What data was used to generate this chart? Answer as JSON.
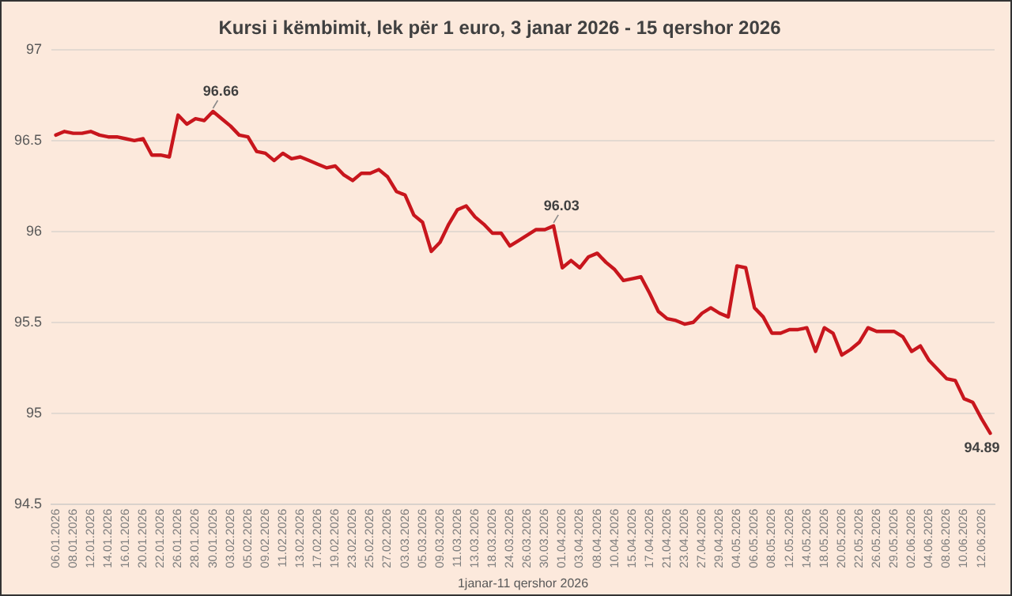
{
  "chart_data": {
    "type": "line",
    "title": "Kursi i këmbimit, lek për 1 euro, 3 janar 2026 - 15 qershor 2026",
    "xlabel": "1janar-11 qershor 2026",
    "categories": [
      "06.01.2026",
      null,
      "08.01.2026",
      null,
      "12.01.2026",
      null,
      "14.01.2026",
      null,
      "16.01.2026",
      null,
      "20.01.2026",
      null,
      "22.01.2026",
      null,
      "26.01.2026",
      null,
      "28.01.2026",
      null,
      "30.01.2026",
      null,
      "03.02.2026",
      null,
      "05.02.2026",
      null,
      "09.02.2026",
      null,
      "11.02.2026",
      null,
      "13.02.2026",
      null,
      "17.02.2026",
      null,
      "19.02.2026",
      null,
      "23.02.2026",
      null,
      "25.02.2026",
      null,
      "27.02.2026",
      null,
      "03.03.2026",
      null,
      "05.03.2026",
      null,
      "09.03.2026",
      null,
      "11.03.2026",
      null,
      "13.03.2026",
      null,
      "18.03.2026",
      null,
      "24.03.2026",
      null,
      "26.03.2026",
      null,
      "30.03.2026",
      null,
      "01.04.2026",
      null,
      "03.04.2026",
      null,
      "08.04.2026",
      null,
      "10.04.2026",
      null,
      "15.04.2026",
      null,
      "17.04.2026",
      null,
      "21.04.2026",
      null,
      "23.04.2026",
      null,
      "27.04.2026",
      null,
      "29.04.2026",
      null,
      "04.05.2026",
      null,
      "06.05.2026",
      null,
      "08.05.2026",
      null,
      "12.05.2026",
      null,
      "14.05.2026",
      null,
      "18.05.2026",
      null,
      "20.05.2026",
      null,
      "22.05.2026",
      null,
      "26.05.2026",
      null,
      "29.05.2026",
      null,
      "02.06.2026",
      null,
      "04.06.2026",
      null,
      "08.06.2026",
      null,
      "10.06.2026",
      null,
      "12.06.2026",
      null
    ],
    "series": [
      {
        "color": "#c8161d",
        "values": [
          96.53,
          96.55,
          96.54,
          96.54,
          96.55,
          96.53,
          96.52,
          96.52,
          96.51,
          96.5,
          96.51,
          96.42,
          96.42,
          96.41,
          96.64,
          96.59,
          96.62,
          96.61,
          96.66,
          96.62,
          96.58,
          96.53,
          96.52,
          96.44,
          96.43,
          96.39,
          96.43,
          96.4,
          96.41,
          96.39,
          96.37,
          96.35,
          96.36,
          96.31,
          96.28,
          96.32,
          96.32,
          96.34,
          96.3,
          96.22,
          96.2,
          96.09,
          96.05,
          95.89,
          95.94,
          96.04,
          96.12,
          96.14,
          96.08,
          96.04,
          95.99,
          95.99,
          95.92,
          95.95,
          95.98,
          96.01,
          96.01,
          96.03,
          95.8,
          95.84,
          95.8,
          95.86,
          95.88,
          95.83,
          95.79,
          95.73,
          95.74,
          95.75,
          95.66,
          95.56,
          95.52,
          95.51,
          95.49,
          95.5,
          95.55,
          95.58,
          95.55,
          95.53,
          95.81,
          95.8,
          95.58,
          95.53,
          95.44,
          95.44,
          95.46,
          95.46,
          95.47,
          95.34,
          95.47,
          95.44,
          95.32,
          95.35,
          95.39,
          95.47,
          95.45,
          95.45,
          95.45,
          95.42,
          95.34,
          95.37,
          95.29,
          95.24,
          95.19,
          95.18,
          95.08,
          95.06,
          94.97,
          94.89
        ],
        "value_labels": [
          null,
          null,
          null,
          null,
          null,
          null,
          null,
          null,
          null,
          null,
          null,
          null,
          null,
          null,
          null,
          null,
          null,
          null,
          "96.66",
          null,
          null,
          null,
          null,
          null,
          null,
          null,
          null,
          null,
          null,
          null,
          null,
          null,
          null,
          null,
          null,
          null,
          null,
          null,
          null,
          null,
          null,
          null,
          null,
          null,
          null,
          null,
          null,
          null,
          null,
          null,
          null,
          null,
          null,
          null,
          null,
          null,
          null,
          "96.03",
          null,
          null,
          null,
          null,
          null,
          null,
          null,
          null,
          null,
          null,
          null,
          null,
          null,
          null,
          null,
          null,
          null,
          null,
          null,
          null,
          null,
          null,
          null,
          null,
          null,
          null,
          null,
          null,
          null,
          null,
          null,
          null,
          null,
          null,
          null,
          null,
          null,
          null,
          null,
          null,
          null,
          null,
          null,
          null,
          null,
          null,
          null,
          null,
          null,
          "94.89"
        ]
      }
    ],
    "ylim": [
      94.5,
      97
    ],
    "yticks": [
      94.5,
      95,
      95.5,
      96,
      96.5,
      97
    ],
    "grid": "y",
    "legend": false,
    "marker": "none",
    "line_style": "solid"
  }
}
